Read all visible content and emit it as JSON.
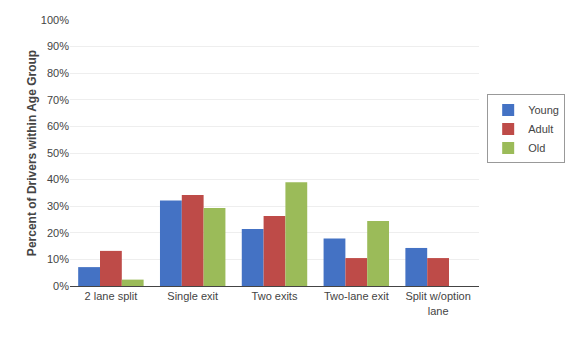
{
  "chart_data": {
    "type": "bar",
    "ylabel": "Percent of Drivers within Age Group",
    "categories": [
      "2 lane split",
      "Single exit",
      "Two exits",
      "Two-lane exit",
      "Split w/option\nlane"
    ],
    "series": [
      {
        "name": "Young",
        "color": "#4472C4",
        "values": [
          7.1,
          32.1,
          21.4,
          17.9,
          14.3
        ]
      },
      {
        "name": "Adult",
        "color": "#BE4B48",
        "values": [
          13.2,
          34.2,
          26.3,
          10.5,
          10.5
        ]
      },
      {
        "name": "Old",
        "color": "#9BBB59",
        "values": [
          2.4,
          29.3,
          39.0,
          24.4,
          0.0
        ]
      }
    ],
    "ylim": [
      0,
      100
    ],
    "yticks": [
      {
        "value": 0,
        "label": "0%"
      },
      {
        "value": 10,
        "label": "10%"
      },
      {
        "value": 20,
        "label": "20%"
      },
      {
        "value": 30,
        "label": "30%"
      },
      {
        "value": 40,
        "label": "40%"
      },
      {
        "value": 50,
        "label": "50%"
      },
      {
        "value": 60,
        "label": "60%"
      },
      {
        "value": 70,
        "label": "70%"
      },
      {
        "value": 80,
        "label": "80%"
      },
      {
        "value": 90,
        "label": "90%"
      },
      {
        "value": 100,
        "label": "100%"
      }
    ],
    "grid": true,
    "legend": "right"
  }
}
